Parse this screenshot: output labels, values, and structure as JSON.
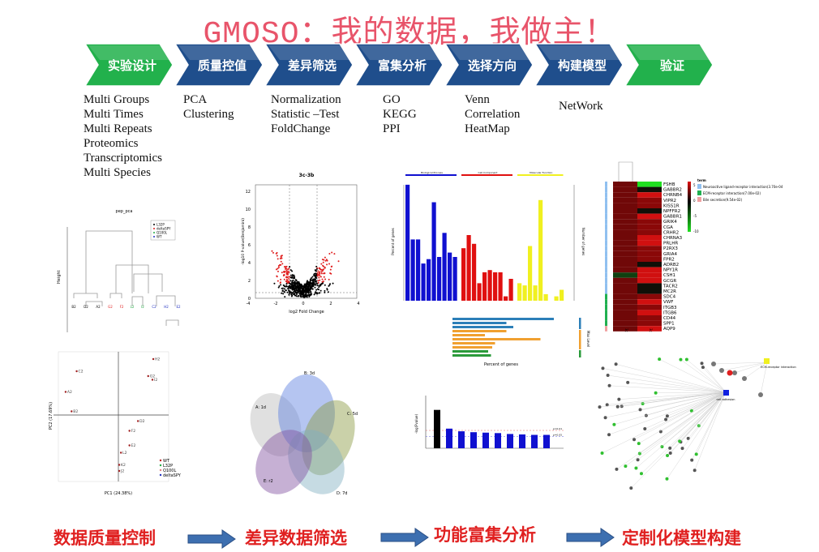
{
  "title": "GMOSO：我的数据，我做主！",
  "steps": [
    {
      "label": "实验设计",
      "color": "#22b14c"
    },
    {
      "label": "质量控值",
      "color": "#1f4e8c"
    },
    {
      "label": "差异筛选",
      "color": "#1f4e8c"
    },
    {
      "label": "富集分析",
      "color": "#1f4e8c"
    },
    {
      "label": "选择方向",
      "color": "#1f4e8c"
    },
    {
      "label": "构建模型",
      "color": "#1f4e8c"
    },
    {
      "label": "验证",
      "color": "#22b14c"
    }
  ],
  "lists": [
    [
      "Multi Groups",
      "Multi Times",
      "Multi Repeats",
      "Proteomics",
      "Transcriptomics",
      "Multi Species"
    ],
    [
      "PCA",
      "Clustering"
    ],
    [
      "Normalization",
      "Statistic –Test",
      "FoldChange"
    ],
    [
      "GO",
      "KEGG",
      "PPI"
    ],
    [
      "Venn",
      "Correlation",
      "HeatMap"
    ],
    [
      "NetWork"
    ]
  ],
  "bottom_flow": [
    "数据质量控制",
    "差异数据筛选",
    "功能富集分析",
    "定制化模型构建"
  ],
  "figures": {
    "dendrogram": {
      "title": "pep_pca",
      "ylabel": "Height",
      "legend": [
        {
          "name": "L32P",
          "color": "#000000"
        },
        {
          "name": "deltaSPY",
          "color": "#e02020"
        },
        {
          "name": "Q100L",
          "color": "#22aa44"
        },
        {
          "name": "WT",
          "color": "#2030c0"
        }
      ]
    },
    "pca": {
      "xlabel": "PC1 (24.38%)",
      "ylabel": "PC2 (17.69%)",
      "points": [
        {
          "n": "H2",
          "x": 4.1,
          "y": 4.6
        },
        {
          "n": "G2",
          "x": 3.5,
          "y": 3.2
        },
        {
          "n": "I2",
          "x": 4.0,
          "y": 2.9
        },
        {
          "n": "C2",
          "x": -4.9,
          "y": 3.6
        },
        {
          "n": "A2",
          "x": -6.2,
          "y": 1.9
        },
        {
          "n": "B2",
          "x": -5.5,
          "y": 0.3
        },
        {
          "n": "D2",
          "x": 2.3,
          "y": -0.5
        },
        {
          "n": "F2",
          "x": 1.3,
          "y": -1.3
        },
        {
          "n": "E2",
          "x": 1.3,
          "y": -2.5
        },
        {
          "n": "L2",
          "x": 0.3,
          "y": -3.1
        },
        {
          "n": "K2",
          "x": 0.1,
          "y": -4.1
        },
        {
          "n": "J2",
          "x": 0.1,
          "y": -4.6
        }
      ],
      "legend": [
        {
          "name": "WT",
          "color": "#c02020"
        },
        {
          "name": "L32P",
          "color": "#22aa44"
        },
        {
          "name": "Q100L",
          "color": "#e08080"
        },
        {
          "name": "deltaSPY",
          "color": "#2030c0"
        }
      ]
    },
    "volcano": {
      "title": "3c-3b",
      "xlabel": "log2 Fold Change",
      "ylabel": "-log10 P-value(Benjamini)",
      "xticks": [
        "-4",
        "-2",
        "0",
        "2",
        "4"
      ],
      "yticks": [
        "0",
        "2",
        "4",
        "6",
        "8",
        "10",
        "12"
      ]
    },
    "venn": {
      "sets": [
        {
          "n": "A: 1d",
          "color": "#bbbbbb"
        },
        {
          "n": "B: 3d",
          "color": "#5a7fe0"
        },
        {
          "n": "C: 5d",
          "color": "#8a9a40"
        },
        {
          "n": "D: 7d",
          "color": "#80b0c0"
        },
        {
          "n": "E: r2",
          "color": "#8050a0"
        }
      ]
    },
    "go": {
      "categories": [
        "Biological Process",
        "Cell Component",
        "Molecular Function"
      ],
      "colors": [
        "#1010d0",
        "#e01010",
        "#f0f020"
      ],
      "series": [
        [
          53,
          28,
          28,
          17,
          19,
          45,
          20,
          31,
          22,
          20
        ],
        [
          24,
          30,
          26,
          8,
          13,
          14,
          13,
          13,
          2,
          10
        ],
        [
          8,
          7,
          25,
          7,
          46,
          3,
          0,
          2,
          5
        ]
      ],
      "ylabel": "Percent of genes",
      "y2label": "Number of genes"
    },
    "hbar": {
      "xlabel": "Percent of genes",
      "values": [
        25,
        13.3,
        15,
        13.3,
        8,
        21.7,
        10.5,
        9.8,
        8.8,
        9.5
      ],
      "groups": [
        "#2c7fb8",
        "#2c7fb8",
        "#2c7fb8",
        "#f0a030",
        "#f0a030",
        "#f0a030",
        "#f0a030",
        "#f0a030",
        "#2a9a3a",
        "#2a9a3a"
      ],
      "legend": "Max Level"
    },
    "kegg": {
      "ylabel": "-log(Pvalue)",
      "values": [
        4.3,
        2.2,
        1.9,
        1.8,
        1.75,
        1.7,
        1.6,
        1.55,
        1.5,
        1.5
      ],
      "thresholds": [
        "p=0.01",
        "p=0.05"
      ]
    },
    "heatmap": {
      "genes": [
        "FSHB",
        "GABBR2",
        "CHRNB4",
        "VIPR2",
        "KISS1R",
        "NPFFR2",
        "GABBR1",
        "GRIK4",
        "CGA",
        "CRHR2",
        "CHRNA3",
        "PRLHR",
        "P2RX3",
        "GRIA4",
        "FPR2",
        "ADRB2",
        "NPY1R",
        "CSH1",
        "GCGR",
        "TACR2",
        "MC2R",
        "SDC4",
        "VWF",
        "ITGB3",
        "ITGB6",
        "CD44",
        "SPP1",
        "AQP9"
      ],
      "legend_title": "term",
      "terms": [
        {
          "n": "Neuroactive ligand-receptor interaction(3.70e-04)",
          "color": "#90c0f0"
        },
        {
          "n": "ECM-receptor interaction(7.00e-02)",
          "color": "#20b050"
        },
        {
          "n": "Bile secretion(9.54e-02)",
          "color": "#f0a0a0"
        }
      ],
      "scale": [
        "5",
        "0",
        "-5",
        "-10"
      ],
      "columns": [
        "3c_3b",
        "3c_3d"
      ]
    },
    "network": {
      "hub": "cell adhesion",
      "hub2": "ECM-receptor interaction"
    }
  }
}
